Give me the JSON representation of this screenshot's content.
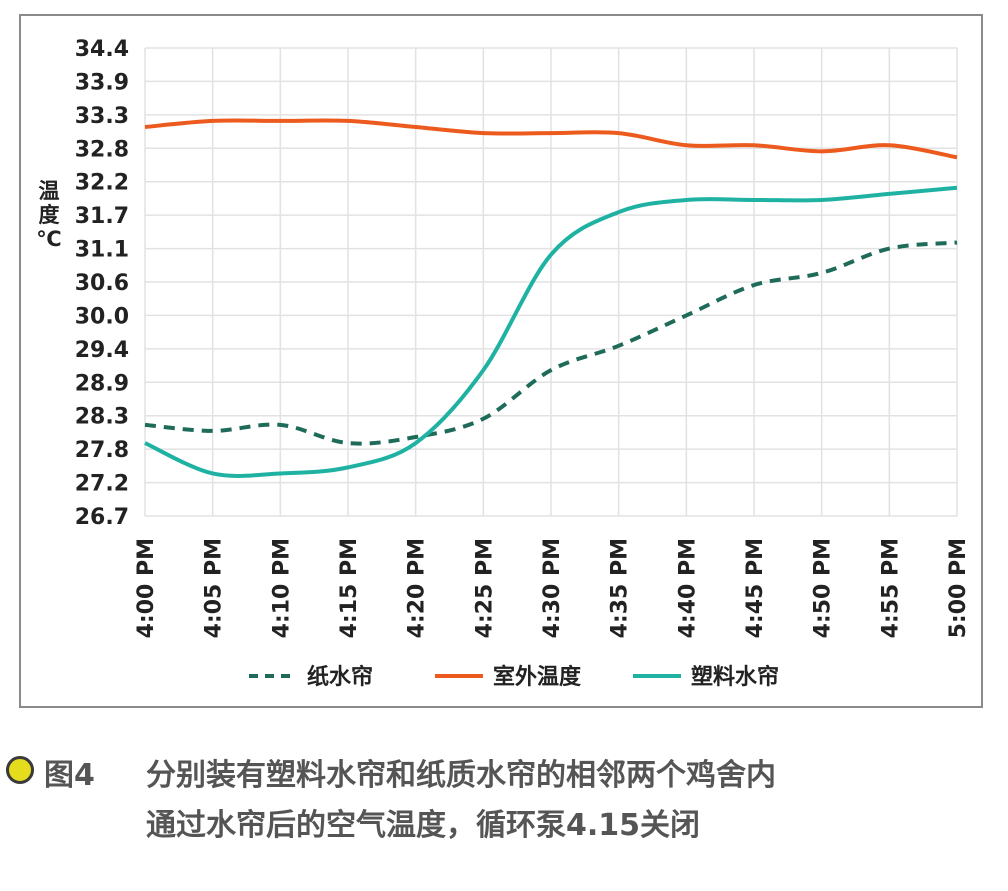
{
  "chart_data": {
    "type": "line",
    "ylabel": "温度℃",
    "x": [
      "4:00 PM",
      "4:05 PM",
      "4:10 PM",
      "4:15 PM",
      "4:20 PM",
      "4:25 PM",
      "4:30 PM",
      "4:35 PM",
      "4:40 PM",
      "4:45 PM",
      "4:50 PM",
      "4:55 PM",
      "5:00 PM"
    ],
    "ylim": [
      26.7,
      34.4
    ],
    "yticks": [
      "34.4",
      "33.9",
      "33.3",
      "32.8",
      "32.2",
      "31.7",
      "31.1",
      "30.6",
      "30.0",
      "29.4",
      "28.9",
      "28.3",
      "27.8",
      "27.2",
      "26.7"
    ],
    "grid": true,
    "legend_position": "bottom",
    "series": [
      {
        "name": "纸水帘",
        "color": "#1f6b5a",
        "style": "dashed",
        "values": [
          28.2,
          28.1,
          28.2,
          27.9,
          28.0,
          28.3,
          29.1,
          29.5,
          30.0,
          30.5,
          30.7,
          31.1,
          31.2
        ]
      },
      {
        "name": "室外温度",
        "color": "#ec5a1e",
        "style": "solid",
        "values": [
          33.1,
          33.2,
          33.2,
          33.2,
          33.1,
          33.0,
          33.0,
          33.0,
          32.8,
          32.8,
          32.7,
          32.8,
          32.6
        ]
      },
      {
        "name": "塑料水帘",
        "color": "#1fb2a3",
        "style": "solid",
        "values": [
          27.9,
          27.4,
          27.4,
          27.5,
          27.9,
          29.1,
          31.0,
          31.7,
          31.9,
          31.9,
          31.9,
          32.0,
          32.1
        ]
      }
    ]
  },
  "caption": {
    "label": "图4",
    "line1": "分别装有塑料水帘和纸质水帘的相邻两个鸡舍内",
    "line2": "通过水帘后的空气温度，循环泵4.15关闭"
  }
}
